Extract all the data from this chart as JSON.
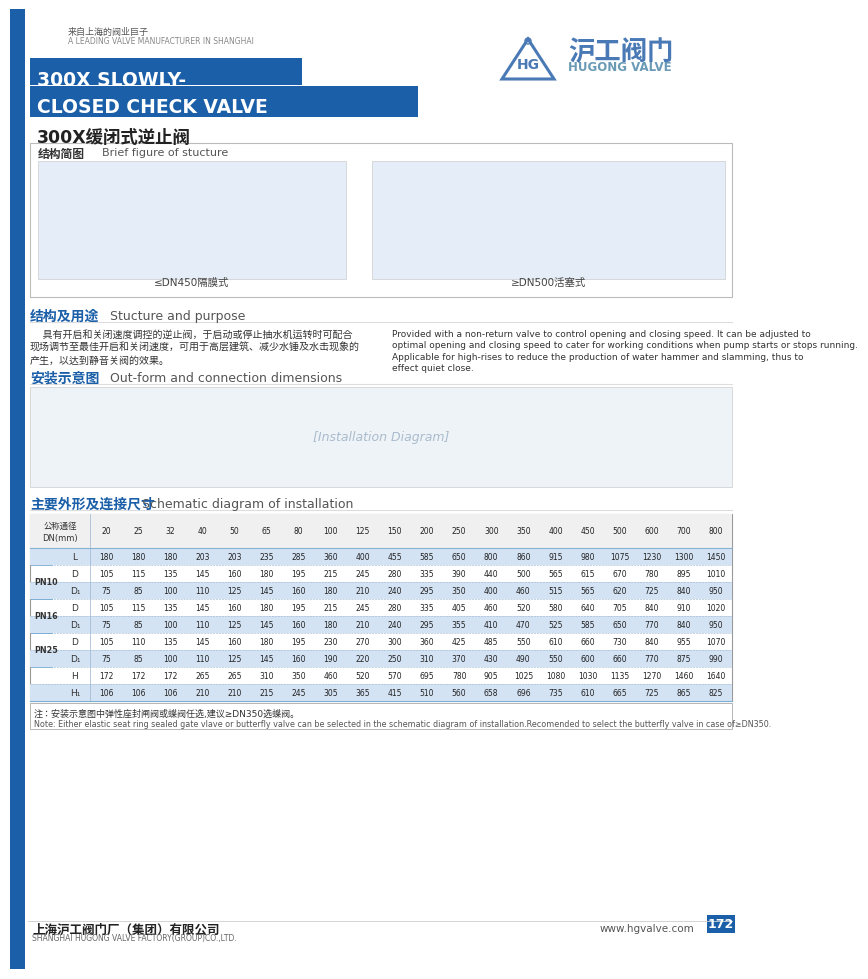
{
  "title_line1": "300X SLOWLY-",
  "title_line2": "CLOSED CHECK VALVE",
  "title_chinese": "300X缓闭式逆止阀",
  "title_bg_color": "#1a5fa8",
  "company_name_zh": "沪工阀门",
  "company_name_en": "HUGONG VALVE",
  "tagline_zh": "来自上海的阀业巨子",
  "tagline_en": "A LEADING VALVE MANUFACTURER IN SHANGHAI",
  "section1_title_zh": "结构简图",
  "section1_title_en": "Brief figure of stucture",
  "section1_sub1": "≤DN450隔膜式",
  "section1_sub2": "≥DN500活塞式",
  "section2_title_zh": "结构及用途",
  "section2_title_en": "Stucture and purpose",
  "section2_zh_lines": [
    "    具有开启和关闭速度调控的逆止阀，于启动或停止抽水机运转时可配合",
    "现场调节至最佳开启和关闭速度，可用于高层建筑、减少水锤及水击现象的",
    "产生，以达到静音关阀的效果。"
  ],
  "section2_en_lines": [
    "Provided with a non-return valve to control opening and closing speed. It can be adjusted to",
    "optimal opening and closing speed to cater for working conditions when pump starts or stops running.",
    "Applicable for high-rises to reduce the production of water hammer and slamming, thus to",
    "effect quiet close."
  ],
  "section3_title_zh": "安装示意图",
  "section3_title_en": "Out-form and connection dimensions",
  "section4_title_zh": "主要外形及连接尺寸",
  "section4_title_en": "Schematic diagram of installation",
  "table_header_zh": "公称通径",
  "table_header_unit": "DN(mm)",
  "table_dn": [
    "20",
    "25",
    "32",
    "40",
    "50",
    "65",
    "80",
    "100",
    "125",
    "150",
    "200",
    "250",
    "300",
    "350",
    "400",
    "450",
    "500",
    "600",
    "700",
    "800"
  ],
  "table_L": [
    "180",
    "180",
    "180",
    "203",
    "203",
    "235",
    "285",
    "360",
    "400",
    "455",
    "585",
    "650",
    "800",
    "860",
    "915",
    "980",
    "1075",
    "1230",
    "1300",
    "1450"
  ],
  "table_PN10_D": [
    "105",
    "115",
    "135",
    "145",
    "160",
    "180",
    "195",
    "215",
    "245",
    "280",
    "335",
    "390",
    "440",
    "500",
    "565",
    "615",
    "670",
    "780",
    "895",
    "1010"
  ],
  "table_PN10_D1": [
    "75",
    "85",
    "100",
    "110",
    "125",
    "145",
    "160",
    "180",
    "210",
    "240",
    "295",
    "350",
    "400",
    "460",
    "515",
    "565",
    "620",
    "725",
    "840",
    "950"
  ],
  "table_PN16_D": [
    "105",
    "115",
    "135",
    "145",
    "160",
    "180",
    "195",
    "215",
    "245",
    "280",
    "335",
    "405",
    "460",
    "520",
    "580",
    "640",
    "705",
    "840",
    "910",
    "1020"
  ],
  "table_PN16_D1": [
    "75",
    "85",
    "100",
    "110",
    "125",
    "145",
    "160",
    "180",
    "210",
    "240",
    "295",
    "355",
    "410",
    "470",
    "525",
    "585",
    "650",
    "770",
    "840",
    "950"
  ],
  "table_PN25_D": [
    "105",
    "110",
    "135",
    "145",
    "160",
    "180",
    "195",
    "230",
    "270",
    "300",
    "360",
    "425",
    "485",
    "550",
    "610",
    "660",
    "730",
    "840",
    "955",
    "1070"
  ],
  "table_PN25_D1": [
    "75",
    "85",
    "100",
    "110",
    "125",
    "145",
    "160",
    "190",
    "220",
    "250",
    "310",
    "370",
    "430",
    "490",
    "550",
    "600",
    "660",
    "770",
    "875",
    "990"
  ],
  "table_H": [
    "172",
    "172",
    "172",
    "265",
    "265",
    "310",
    "350",
    "460",
    "520",
    "570",
    "695",
    "780",
    "905",
    "1025",
    "1080",
    "1030",
    "1135",
    "1270",
    "1460",
    "1640"
  ],
  "table_H1": [
    "106",
    "106",
    "106",
    "210",
    "210",
    "215",
    "245",
    "305",
    "365",
    "415",
    "510",
    "560",
    "658",
    "696",
    "735",
    "610",
    "665",
    "725",
    "865",
    "825"
  ],
  "note_zh": "注：安装示意图中弹性座封闸阀或蝶阀任选,建议≥DN350选蝶阀。",
  "note_en": "Note: Either elastic seat ring sealed gate vlave or butterfly valve can be selected in the schematic diagram of installation.Recomended to select the butterfly valve in case of≥DN350.",
  "footer_company_zh": "上海沪工阀门厂（集团）有限公司",
  "footer_company_en": "SHANGHAI HUGONG VALVE FACTORY(GROUP)CO.,LTD.",
  "footer_website": "www.hgvalve.com",
  "footer_page": "172",
  "bg_color": "#ffffff",
  "table_alt_color": "#d4e3f4",
  "accent_blue": "#1a5fa8",
  "light_blue": "#4a7ab5",
  "text_dark": "#222222",
  "text_gray": "#555555",
  "line_color": "#9ab5d0",
  "border_color": "#aaaaaa"
}
